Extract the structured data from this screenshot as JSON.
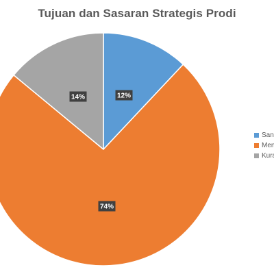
{
  "chart_data": {
    "type": "pie",
    "title": "Tujuan dan Sasaran Strategis Prodi",
    "categories": [
      "Sanga",
      "Meng",
      "Kurar"
    ],
    "values": [
      12,
      74,
      14
    ],
    "data_labels": [
      "12%",
      "74%",
      "14%"
    ],
    "colors": [
      "#5B9BD5",
      "#ED7D31",
      "#A5A5A5"
    ],
    "legend_position": "right"
  },
  "legend_items": [
    {
      "label": "Sanga",
      "color": "#5B9BD5"
    },
    {
      "label": "Meng",
      "color": "#ED7D31"
    },
    {
      "label": "Kurar",
      "color": "#A5A5A5"
    }
  ]
}
